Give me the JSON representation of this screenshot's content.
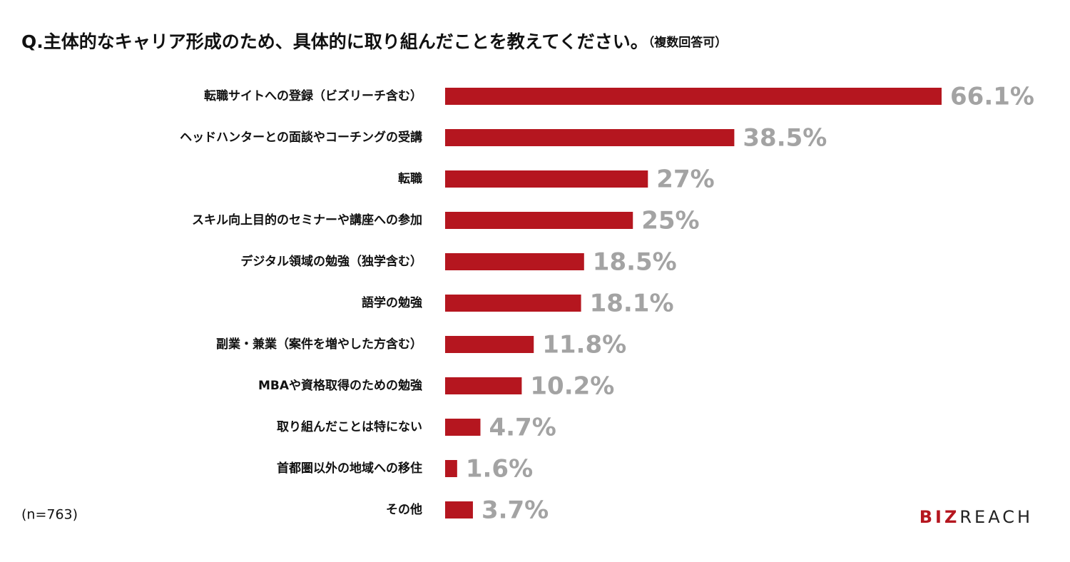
{
  "chart_data": {
    "type": "bar",
    "orientation": "horizontal",
    "title": "Q.主体的なキャリア形成のため、具体的に取り組んだことを教えてください。",
    "subtitle": "（複数回答可）",
    "note": "(n=763)",
    "logo": [
      "BIZ",
      "REACH"
    ],
    "categories": [
      "転職サイトへの登録（ビズリーチ含む）",
      "ヘッドハンターとの面談やコーチングの受講",
      "転職",
      "スキル向上目的のセミナーや講座への参加",
      "デジタル領域の勉強（独学含む）",
      "語学の勉強",
      "副業・兼業（案件を増やした方含む）",
      "MBAや資格取得のための勉強",
      "取り組んだことは特にない",
      "首都圏以外の地域への移住",
      "その他"
    ],
    "values": [
      66.1,
      38.5,
      27,
      25,
      18.5,
      18.1,
      11.8,
      10.2,
      4.7,
      1.6,
      3.7
    ],
    "value_labels": [
      "66.1%",
      "38.5%",
      "27%",
      "25%",
      "18.5%",
      "18.1%",
      "11.8%",
      "10.2%",
      "4.7%",
      "1.6%",
      "3.7%"
    ],
    "color": "#b5161f",
    "label_color": "#a3a3a3"
  }
}
